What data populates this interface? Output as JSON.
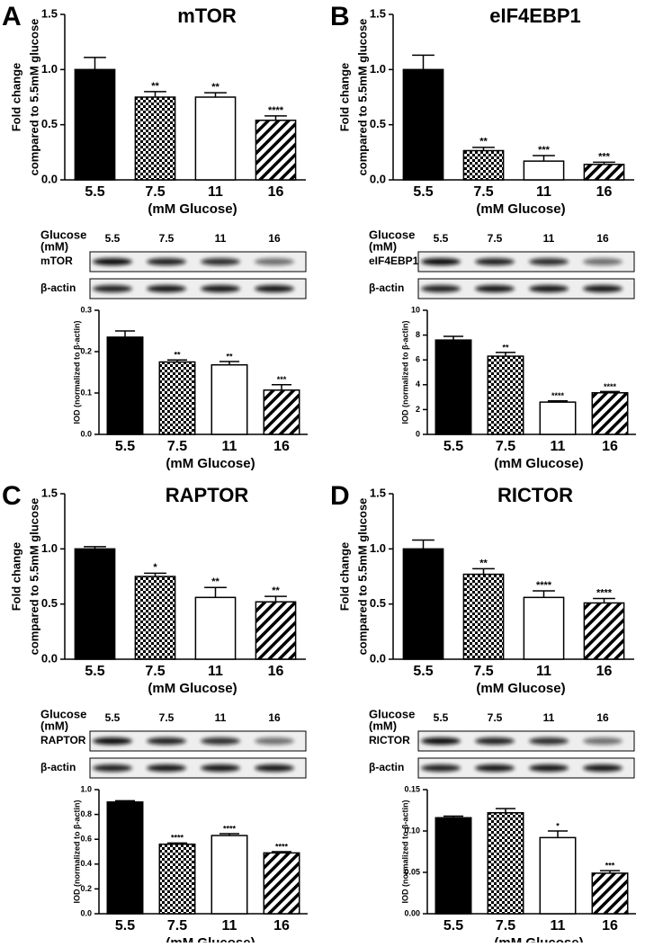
{
  "panel_letters": [
    "A",
    "B",
    "C",
    "D"
  ],
  "blots": [
    {
      "header": [
        "Glucose",
        "(mM)"
      ],
      "lanes": [
        "5.5",
        "7.5",
        "11",
        "16"
      ],
      "rows": [
        "mTOR",
        "β-actin"
      ]
    },
    {
      "header": [
        "Glucose",
        "(mM)"
      ],
      "lanes": [
        "5.5",
        "7.5",
        "11",
        "16"
      ],
      "rows": [
        "eIF4EBP1",
        "β-actin"
      ]
    },
    {
      "header": [
        "Glucose",
        "(mM)"
      ],
      "lanes": [
        "5.5",
        "7.5",
        "11",
        "16"
      ],
      "rows": [
        "RAPTOR",
        "β-actin"
      ]
    },
    {
      "header": [
        "Glucose",
        "(mM)"
      ],
      "lanes": [
        "5.5",
        "7.5",
        "11",
        "16"
      ],
      "rows": [
        "RICTOR",
        "β-actin"
      ]
    }
  ],
  "chart_data": [
    {
      "type": "bar",
      "title": "mTOR",
      "ylabel": [
        "Fold change",
        "compared to 5.5mM glucose"
      ],
      "xlabel": "(mM Glucose)",
      "categories": [
        "5.5",
        "7.5",
        "11",
        "16"
      ],
      "values": [
        1.0,
        0.75,
        0.75,
        0.54
      ],
      "errors": [
        0.11,
        0.05,
        0.04,
        0.04
      ],
      "annotations": [
        null,
        "**",
        "**",
        "****"
      ],
      "fills": [
        "solid",
        "checker",
        "open",
        "hatch"
      ],
      "color": "#000000",
      "ylim": [
        0,
        1.5
      ],
      "yticks": [
        {
          "value": 0,
          "label": "0.0"
        },
        0.5,
        {
          "value": 1,
          "label": "1.0"
        },
        1.5
      ]
    },
    {
      "type": "bar",
      "ylabel": [
        "IOD (normalized to β-actin)"
      ],
      "xlabel": "(mM Glucose)",
      "categories": [
        "5.5",
        "7.5",
        "11",
        "16"
      ],
      "values": [
        0.235,
        0.175,
        0.168,
        0.107
      ],
      "errors": [
        0.015,
        0.005,
        0.008,
        0.013
      ],
      "annotations": [
        null,
        "**",
        "**",
        "***"
      ],
      "fills": [
        "solid",
        "checker",
        "open",
        "hatch"
      ],
      "color": "#000000",
      "ylim": [
        0,
        0.3
      ],
      "yticks": [
        {
          "value": 0,
          "label": "0.0"
        },
        0.1,
        0.2,
        0.3
      ]
    },
    {
      "type": "bar",
      "title": "eIF4EBP1",
      "ylabel": [
        "Fold change",
        "compared to 5.5mM glucose"
      ],
      "xlabel": "(mM Glucose)",
      "categories": [
        "5.5",
        "7.5",
        "11",
        "16"
      ],
      "values": [
        1.0,
        0.265,
        0.17,
        0.14
      ],
      "errors": [
        0.13,
        0.03,
        0.05,
        0.02
      ],
      "annotations": [
        null,
        "**",
        "***",
        "***"
      ],
      "fills": [
        "solid",
        "checker",
        "open",
        "hatch"
      ],
      "color": "#000000",
      "ylim": [
        0,
        1.5
      ],
      "yticks": [
        {
          "value": 0,
          "label": "0.0"
        },
        0.5,
        {
          "value": 1,
          "label": "1.0"
        },
        1.5
      ]
    },
    {
      "type": "bar",
      "ylabel": [
        "IOD (normalized to β-actin)"
      ],
      "xlabel": "(mM Glucose)",
      "categories": [
        "5.5",
        "7.5",
        "11",
        "16"
      ],
      "values": [
        7.6,
        6.3,
        2.6,
        3.35
      ],
      "errors": [
        0.3,
        0.3,
        0.1,
        0.1
      ],
      "annotations": [
        null,
        "**",
        "****",
        "****"
      ],
      "fills": [
        "solid",
        "checker",
        "open",
        "hatch"
      ],
      "color": "#000000",
      "ylim": [
        0,
        10
      ],
      "yticks": [
        0,
        2,
        4,
        6,
        8,
        10
      ]
    },
    {
      "type": "bar",
      "title": "RAPTOR",
      "ylabel": [
        "Fold change",
        "compared to 5.5mM glucose"
      ],
      "xlabel": "(mM Glucose)",
      "categories": [
        "5.5",
        "7.5",
        "11",
        "16"
      ],
      "values": [
        1.0,
        0.75,
        0.56,
        0.52
      ],
      "errors": [
        0.02,
        0.03,
        0.09,
        0.05
      ],
      "annotations": [
        null,
        "*",
        "**",
        "**"
      ],
      "fills": [
        "solid",
        "checker",
        "open",
        "hatch"
      ],
      "color": "#000000",
      "ylim": [
        0,
        1.5
      ],
      "yticks": [
        {
          "value": 0,
          "label": "0.0"
        },
        0.5,
        {
          "value": 1,
          "label": "1.0"
        },
        1.5
      ]
    },
    {
      "type": "bar",
      "ylabel": [
        "IOD (normalized to β-actin)"
      ],
      "xlabel": "(mM Glucose)",
      "categories": [
        "5.5",
        "7.5",
        "11",
        "16"
      ],
      "values": [
        0.9,
        0.56,
        0.63,
        0.49
      ],
      "errors": [
        0.01,
        0.01,
        0.015,
        0.01
      ],
      "annotations": [
        null,
        "****",
        "****",
        "****"
      ],
      "fills": [
        "solid",
        "checker",
        "open",
        "hatch"
      ],
      "color": "#000000",
      "ylim": [
        0,
        1
      ],
      "yticks": [
        {
          "value": 0,
          "label": "0.0"
        },
        0.2,
        0.4,
        0.6,
        0.8,
        {
          "value": 1,
          "label": "1.0"
        }
      ]
    },
    {
      "type": "bar",
      "title": "RICTOR",
      "ylabel": [
        "Fold change",
        "compared to 5.5mM glucose"
      ],
      "xlabel": "(mM Glucose)",
      "categories": [
        "5.5",
        "7.5",
        "11",
        "16"
      ],
      "values": [
        1.0,
        0.77,
        0.56,
        0.51
      ],
      "errors": [
        0.08,
        0.05,
        0.06,
        0.04
      ],
      "annotations": [
        null,
        "**",
        "****",
        "****"
      ],
      "fills": [
        "solid",
        "checker",
        "open",
        "hatch"
      ],
      "color": "#000000",
      "ylim": [
        0,
        1.5
      ],
      "yticks": [
        {
          "value": 0,
          "label": "0.0"
        },
        0.5,
        {
          "value": 1,
          "label": "1.0"
        },
        1.5
      ]
    },
    {
      "type": "bar",
      "ylabel": [
        "IOD (normalized to β-actin)"
      ],
      "xlabel": "(mM Glucose)",
      "categories": [
        "5.5",
        "7.5",
        "11",
        "16"
      ],
      "values": [
        0.116,
        0.122,
        0.092,
        0.049
      ],
      "errors": [
        0.002,
        0.005,
        0.008,
        0.003
      ],
      "annotations": [
        null,
        null,
        "*",
        "***"
      ],
      "fills": [
        "solid",
        "checker",
        "open",
        "hatch"
      ],
      "color": "#000000",
      "ylim": [
        0,
        0.15
      ],
      "yticks": [
        {
          "value": 0,
          "label": "0.00"
        },
        0.05,
        {
          "value": 0.1,
          "label": "0.10"
        },
        0.15
      ]
    }
  ]
}
